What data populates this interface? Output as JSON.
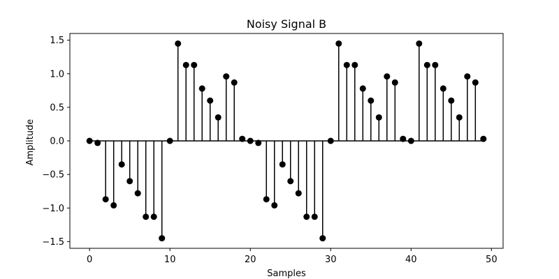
{
  "chart_data": {
    "type": "stem",
    "title": "Noisy Signal B",
    "xlabel": "Samples",
    "ylabel": "Amplitude",
    "xlim": [
      -2.45,
      51.45
    ],
    "ylim": [
      -1.6,
      1.6
    ],
    "xticks": [
      0,
      10,
      20,
      30,
      40,
      50
    ],
    "yticks": [
      -1.5,
      -1.0,
      -0.5,
      0.0,
      0.5,
      1.0,
      1.5
    ],
    "ytick_labels": [
      "−1.5",
      "−1.0",
      "−0.5",
      "0.0",
      "0.5",
      "1.0",
      "1.5"
    ],
    "grid": false,
    "baseline": 0,
    "color": "#000000",
    "x": [
      0,
      1,
      2,
      3,
      4,
      5,
      6,
      7,
      8,
      9,
      10,
      11,
      12,
      13,
      14,
      15,
      16,
      17,
      18,
      19,
      20,
      21,
      22,
      23,
      24,
      25,
      26,
      27,
      28,
      29,
      30,
      31,
      32,
      33,
      34,
      35,
      36,
      37,
      38,
      39,
      40,
      41,
      42,
      43,
      44,
      45,
      46,
      47,
      48,
      49
    ],
    "values": [
      0.0,
      -0.03,
      -0.87,
      -0.96,
      -0.35,
      -0.6,
      -0.78,
      -1.13,
      -1.13,
      -1.45,
      0.0,
      1.45,
      1.13,
      1.13,
      0.78,
      0.6,
      0.35,
      0.96,
      0.87,
      0.03,
      0.0,
      -0.03,
      -0.87,
      -0.96,
      -0.35,
      -0.6,
      -0.78,
      -1.13,
      -1.13,
      -1.45,
      0.0,
      1.45,
      1.13,
      1.13,
      0.78,
      0.6,
      0.35,
      0.96,
      0.87,
      0.03,
      0.0,
      1.45,
      1.13,
      1.13,
      0.78,
      0.6,
      0.35,
      0.96,
      0.87,
      0.03
    ]
  }
}
